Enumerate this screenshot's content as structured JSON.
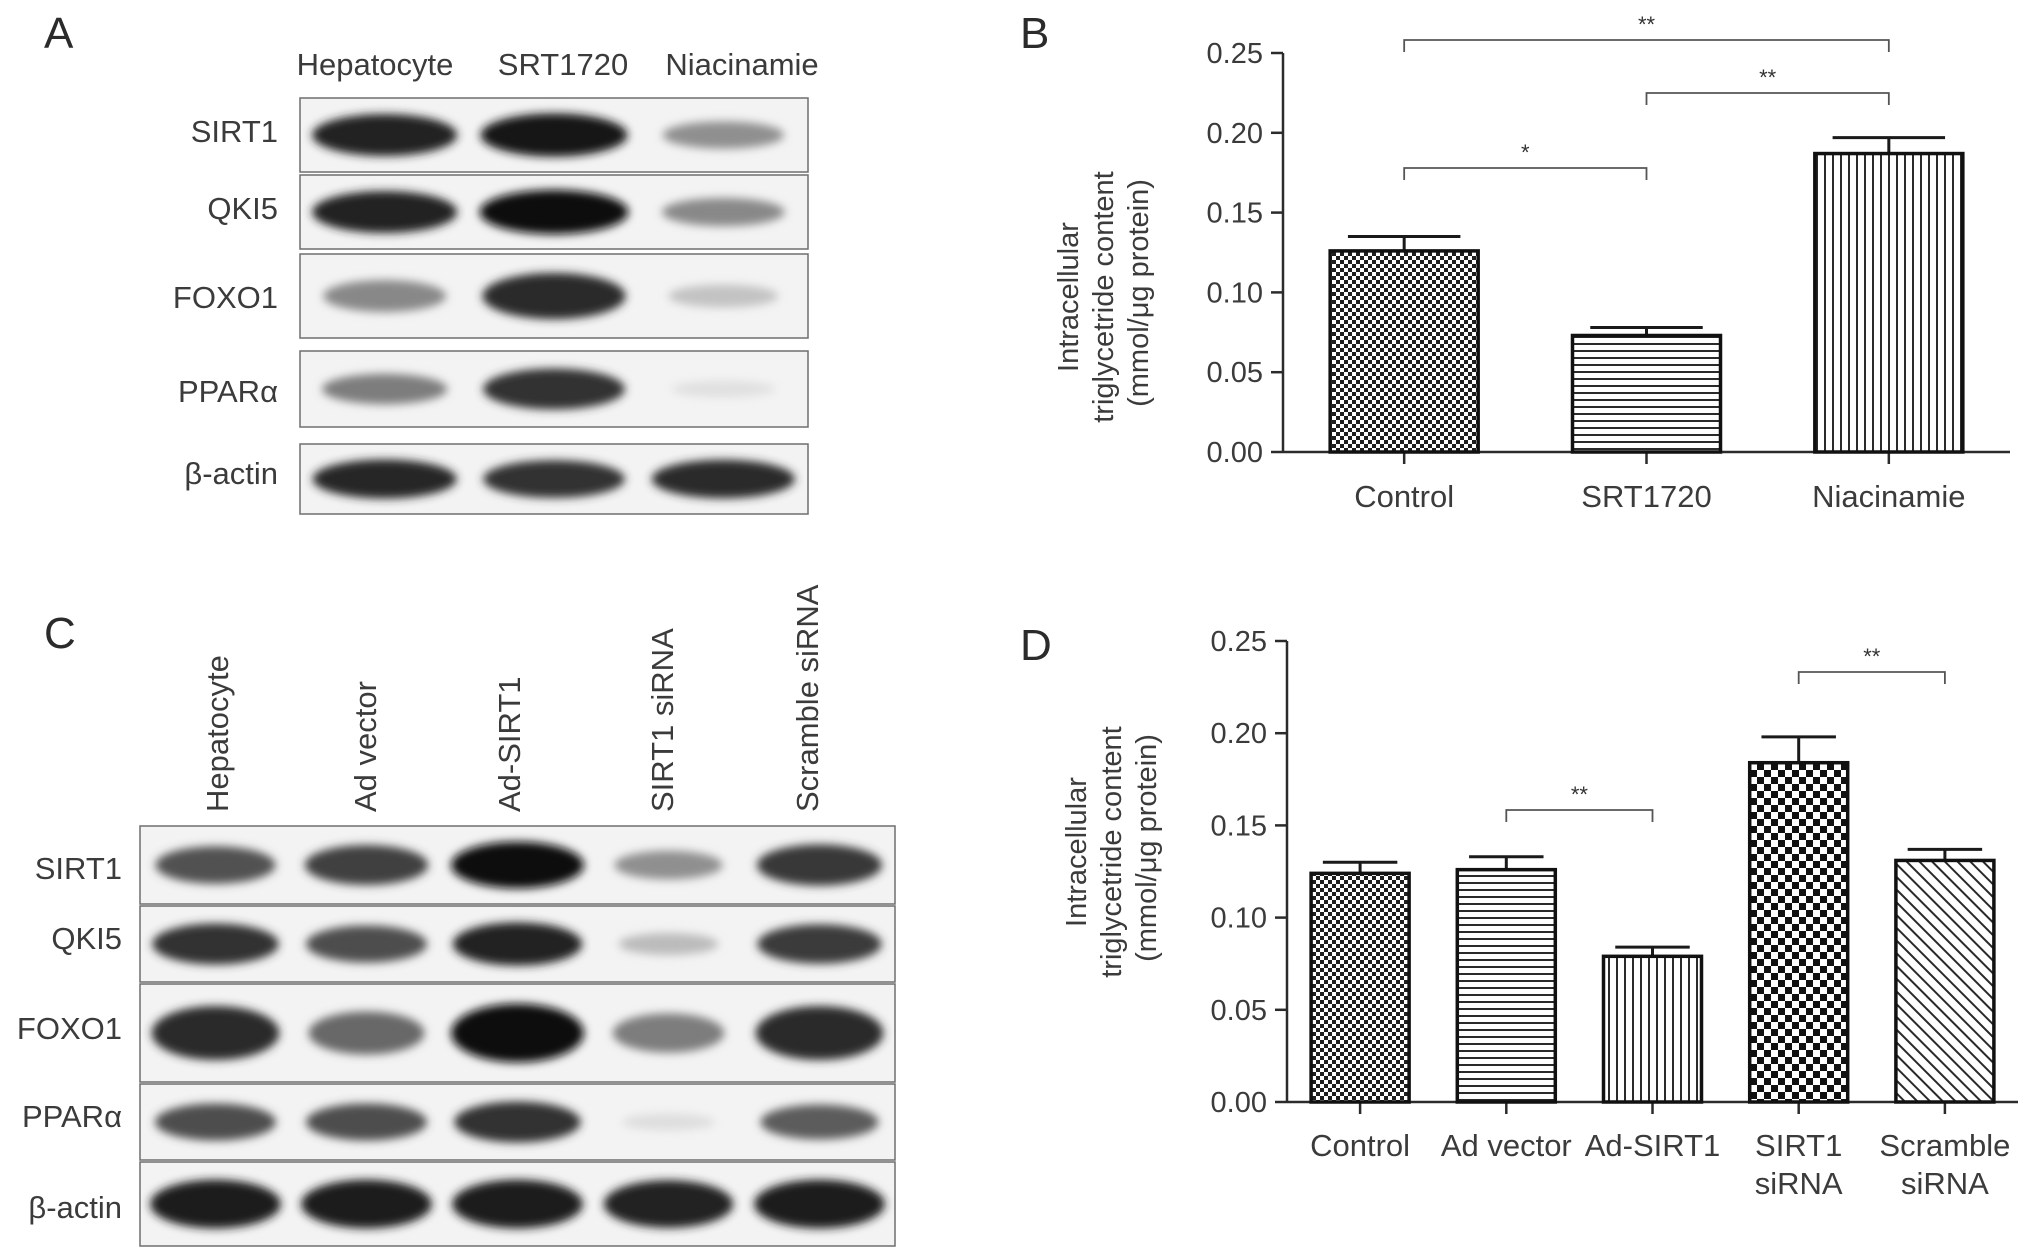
{
  "panels": {
    "A": {
      "letter": "A",
      "lanes": [
        "Hepatocyte",
        "SRT1720",
        "Niacinamie"
      ],
      "rows": [
        {
          "label": "SIRT1",
          "intensity": [
            0.92,
            0.96,
            0.42
          ]
        },
        {
          "label": "QKI5",
          "intensity": [
            0.92,
            1.0,
            0.45
          ]
        },
        {
          "label": "FOXO1",
          "intensity": [
            0.45,
            0.88,
            0.18
          ]
        },
        {
          "label": "PPARα",
          "intensity": [
            0.5,
            0.85,
            0.05
          ]
        },
        {
          "label": "β-actin",
          "intensity": [
            0.9,
            0.85,
            0.88
          ]
        }
      ]
    },
    "C": {
      "letter": "C",
      "lanes": [
        "Hepatocyte",
        "Ad vector",
        "Ad-SIRT1",
        "SIRT1 siRNA",
        "Scramble siRNA"
      ],
      "rows": [
        {
          "label": "SIRT1",
          "intensity": [
            0.7,
            0.78,
            1.0,
            0.42,
            0.82
          ]
        },
        {
          "label": "QKI5",
          "intensity": [
            0.85,
            0.72,
            0.92,
            0.22,
            0.8
          ]
        },
        {
          "label": "FOXO1",
          "intensity": [
            0.88,
            0.6,
            1.0,
            0.5,
            0.88
          ]
        },
        {
          "label": "PPARα",
          "intensity": [
            0.72,
            0.72,
            0.85,
            0.06,
            0.65
          ]
        },
        {
          "label": "β-actin",
          "intensity": [
            0.95,
            0.95,
            0.95,
            0.92,
            0.95
          ]
        }
      ]
    }
  },
  "chart_data": [
    {
      "panel": "B",
      "type": "bar",
      "ylabel": "Intracellular\ntriglycetride content\n(mmol/μg protein)",
      "ylim": [
        0,
        0.25
      ],
      "yticks": [
        "0.00",
        "0.05",
        "0.10",
        "0.15",
        "0.20",
        "0.25"
      ],
      "categories": [
        "Control",
        "SRT1720",
        "Niacinamie"
      ],
      "values": [
        0.126,
        0.073,
        0.187
      ],
      "errors": [
        0.009,
        0.005,
        0.01
      ],
      "patterns": [
        "check-fine",
        "horizontal",
        "vertical"
      ],
      "significance": [
        {
          "from": 0,
          "to": 1,
          "label": "*"
        },
        {
          "from": 1,
          "to": 2,
          "label": "**"
        },
        {
          "from": 0,
          "to": 2,
          "label": "**"
        }
      ],
      "grid": false,
      "legend": "none"
    },
    {
      "panel": "D",
      "type": "bar",
      "ylabel": "Intracellular\ntriglycetride content\n(mmol/μg protein)",
      "ylim": [
        0,
        0.25
      ],
      "yticks": [
        "0.00",
        "0.05",
        "0.10",
        "0.15",
        "0.20",
        "0.25"
      ],
      "categories": [
        "Control",
        "Ad vector",
        "Ad-SIRT1",
        "SIRT1\nsiRNA",
        "Scramble\nsiRNA"
      ],
      "values": [
        0.124,
        0.126,
        0.079,
        0.184,
        0.131
      ],
      "errors": [
        0.006,
        0.007,
        0.005,
        0.014,
        0.006
      ],
      "patterns": [
        "check-fine",
        "horizontal",
        "vertical",
        "check-coarse",
        "diagonal"
      ],
      "significance": [
        {
          "from": 1,
          "to": 2,
          "label": "**"
        },
        {
          "from": 3,
          "to": 4,
          "label": "**"
        }
      ],
      "grid": false,
      "legend": "none"
    }
  ]
}
